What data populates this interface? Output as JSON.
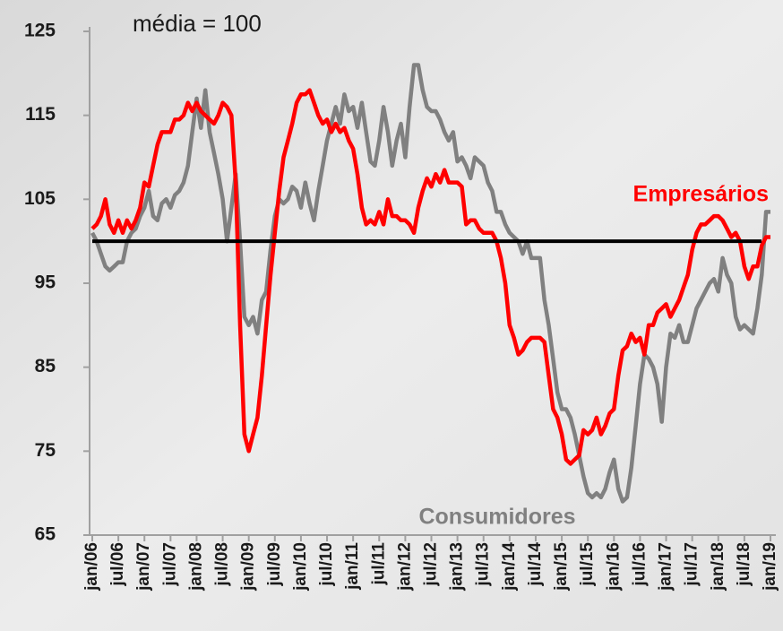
{
  "chart_data": {
    "type": "line",
    "annotations": [
      "média = 100"
    ],
    "reference_line": 100,
    "categories": [
      "jan/06",
      null,
      null,
      null,
      null,
      null,
      "jul/06",
      null,
      null,
      null,
      null,
      null,
      "jan/07",
      null,
      null,
      null,
      null,
      null,
      "jul/07",
      null,
      null,
      null,
      null,
      null,
      "jan/08",
      null,
      null,
      null,
      null,
      null,
      "jul/08",
      null,
      null,
      null,
      null,
      null,
      "jan/09",
      null,
      null,
      null,
      null,
      null,
      "jul/09",
      null,
      null,
      null,
      null,
      null,
      "jan/10",
      null,
      null,
      null,
      null,
      null,
      "jul/10",
      null,
      null,
      null,
      null,
      null,
      "jan/11",
      null,
      null,
      null,
      null,
      null,
      "jul/11",
      null,
      null,
      null,
      null,
      null,
      "jan/12",
      null,
      null,
      null,
      null,
      null,
      "jul/12",
      null,
      null,
      null,
      null,
      null,
      "jan/13",
      null,
      null,
      null,
      null,
      null,
      "jul/13",
      null,
      null,
      null,
      null,
      null,
      "jan/14",
      null,
      null,
      null,
      null,
      null,
      "jul/14",
      null,
      null,
      null,
      null,
      null,
      "jan/15",
      null,
      null,
      null,
      null,
      null,
      "jul/15",
      null,
      null,
      null,
      null,
      null,
      "jan/16",
      null,
      null,
      null,
      null,
      null,
      "jul/16",
      null,
      null,
      null,
      null,
      null,
      "jan/17",
      null,
      null,
      null,
      null,
      null,
      "jul/17",
      null,
      null,
      null,
      null,
      null,
      "jan/18",
      null,
      null,
      null,
      null,
      null,
      "jul/18",
      null,
      null,
      null,
      null,
      null,
      "jan/19"
    ],
    "series": [
      {
        "name": "Consumidores",
        "color": "#808080",
        "values": [
          101,
          100,
          98.5,
          97,
          96.5,
          97,
          97.5,
          97.5,
          100,
          101,
          101.5,
          103,
          104,
          106,
          103,
          102.5,
          104.5,
          105,
          104,
          105.5,
          106,
          107,
          109,
          113,
          117,
          113.5,
          118,
          113,
          110.5,
          108,
          105,
          100,
          104,
          108,
          100,
          91,
          90,
          91,
          89,
          93,
          94,
          99,
          103,
          105,
          104.5,
          105,
          106.5,
          106,
          104,
          107,
          104.5,
          102.5,
          106,
          109,
          112,
          114,
          116,
          114,
          117.5,
          115.5,
          116,
          113.5,
          116.5,
          113,
          109.5,
          109,
          112,
          116,
          113,
          109,
          112,
          114,
          110,
          116,
          121,
          121,
          118,
          116,
          115.5,
          115.5,
          114.5,
          113,
          112,
          113,
          109.5,
          110,
          109,
          107.5,
          110,
          109.5,
          109,
          107,
          106,
          103.5,
          103.5,
          102,
          101,
          100.5,
          100,
          98.5,
          100,
          98,
          98,
          98,
          93,
          90,
          86,
          82,
          80,
          80,
          79,
          77,
          74.5,
          72,
          70,
          69.5,
          70,
          69.5,
          70.5,
          72.5,
          74,
          70.5,
          69,
          69.5,
          73,
          78,
          83,
          86.5,
          86,
          85,
          83,
          78.5,
          85,
          89,
          88.5,
          90,
          88,
          88,
          90,
          92,
          93,
          94,
          95,
          95.5,
          94,
          98,
          96,
          95,
          91,
          89.5,
          90,
          89.5,
          89,
          92,
          96,
          103.5,
          103.5
        ]
      },
      {
        "name": "Empresários",
        "color": "#ff0000",
        "values": [
          101.5,
          102,
          103,
          105,
          102,
          101,
          102.5,
          101,
          102.5,
          101.5,
          102.5,
          104,
          107,
          106.5,
          109,
          111.5,
          113,
          113,
          113,
          114.5,
          114.5,
          115,
          116.5,
          115.5,
          116.5,
          115.5,
          115,
          114.5,
          114,
          115,
          116.5,
          116,
          115,
          107,
          90,
          77,
          75,
          77,
          79,
          84,
          90,
          96,
          101,
          106,
          110,
          112,
          114,
          116.5,
          117.5,
          117.5,
          118,
          116.5,
          115,
          114,
          114.5,
          113,
          114,
          113,
          113.5,
          112,
          111,
          108,
          104,
          102,
          102.5,
          102,
          103.5,
          102,
          105,
          103,
          103,
          102.5,
          102.5,
          102,
          101,
          104,
          106,
          107.5,
          106.5,
          108,
          107,
          108.5,
          107,
          107,
          107,
          106.5,
          102,
          102.5,
          102.5,
          101.5,
          101,
          101,
          101,
          100,
          98,
          95,
          90,
          88.5,
          86.5,
          87,
          88,
          88.5,
          88.5,
          88.5,
          88,
          84,
          80,
          79,
          77,
          74,
          73.5,
          74,
          74.5,
          77.5,
          77,
          77.5,
          79,
          77,
          78,
          79.5,
          80,
          84,
          87,
          87.5,
          89,
          88,
          88.5,
          86.5,
          90,
          90,
          91.5,
          92,
          92.5,
          91,
          92,
          93,
          94.5,
          96,
          99,
          101,
          102,
          102,
          102.5,
          103,
          103,
          102.5,
          101.5,
          100.5,
          101,
          100,
          97,
          95.5,
          97,
          97,
          99.5,
          100.5,
          100.5
        ]
      }
    ],
    "ylim": [
      65,
      125
    ],
    "yticks": [
      65,
      75,
      85,
      95,
      105,
      115,
      125
    ],
    "grid": false
  }
}
